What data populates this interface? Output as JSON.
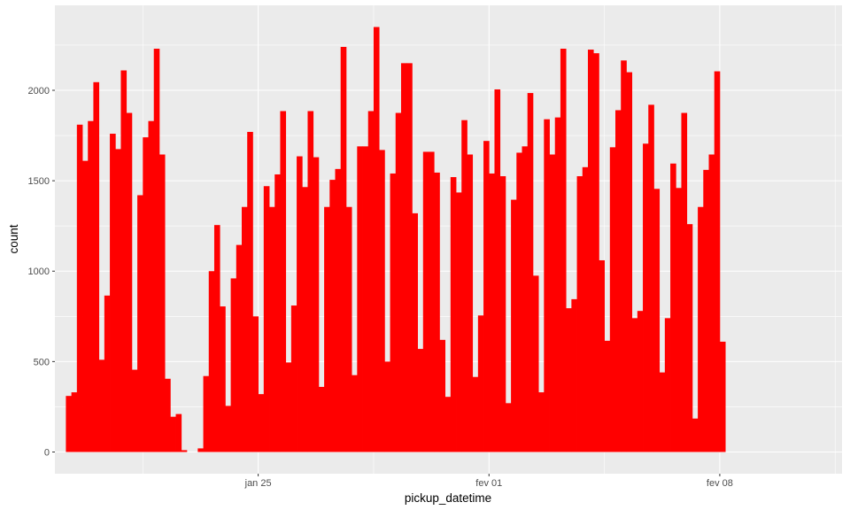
{
  "chart_data": {
    "type": "bar",
    "title": "",
    "xlabel": "pickup_datetime",
    "ylabel": "count",
    "x_range": [
      "2025-01-18T20:00",
      "2025-02-11T17:00"
    ],
    "bin_width_hours": 4,
    "first_bin_start": "2025-01-19T04:00",
    "ylim": [
      -120,
      2470
    ],
    "y_ticks": [
      0,
      500,
      1000,
      1500,
      2000
    ],
    "x_ticks": [
      {
        "label": "jan 25",
        "date": "2025-01-25T00:00"
      },
      {
        "label": "fev 01",
        "date": "2025-02-01T00:00"
      },
      {
        "label": "fev 08",
        "date": "2025-02-08T00:00"
      }
    ],
    "x_minor_ticks": [
      "2025-01-21T12:00",
      "2025-01-28T12:00",
      "2025-02-04T12:00",
      "2025-02-11T12:00"
    ],
    "grid": true,
    "bar_color": "#ff0000",
    "panel_color": "#ebebeb",
    "grid_color": "#ffffff",
    "values": [
      310,
      330,
      1810,
      1610,
      1830,
      2045,
      510,
      865,
      1760,
      1675,
      2110,
      1875,
      455,
      1420,
      1740,
      1830,
      2230,
      1645,
      405,
      195,
      210,
      10,
      0,
      0,
      20,
      420,
      1000,
      1255,
      805,
      255,
      960,
      1145,
      1355,
      1770,
      750,
      320,
      1470,
      1355,
      1535,
      1885,
      495,
      810,
      1635,
      1465,
      1885,
      1630,
      360,
      1355,
      1505,
      1565,
      2240,
      1355,
      425,
      1690,
      1690,
      1885,
      2350,
      1670,
      500,
      1540,
      1875,
      2150,
      2150,
      1320,
      570,
      1660,
      1660,
      1545,
      620,
      305,
      1520,
      1435,
      1835,
      1645,
      415,
      755,
      1720,
      1540,
      2005,
      1525,
      270,
      1395,
      1655,
      1690,
      1985,
      975,
      330,
      1840,
      1645,
      1850,
      2230,
      795,
      845,
      1525,
      1575,
      2225,
      2205,
      1060,
      615,
      1685,
      1890,
      2165,
      2100,
      740,
      780,
      1705,
      1920,
      1455,
      440,
      740,
      1595,
      1460,
      1875,
      1260,
      185,
      1355,
      1560,
      1645,
      2105,
      610
    ]
  }
}
